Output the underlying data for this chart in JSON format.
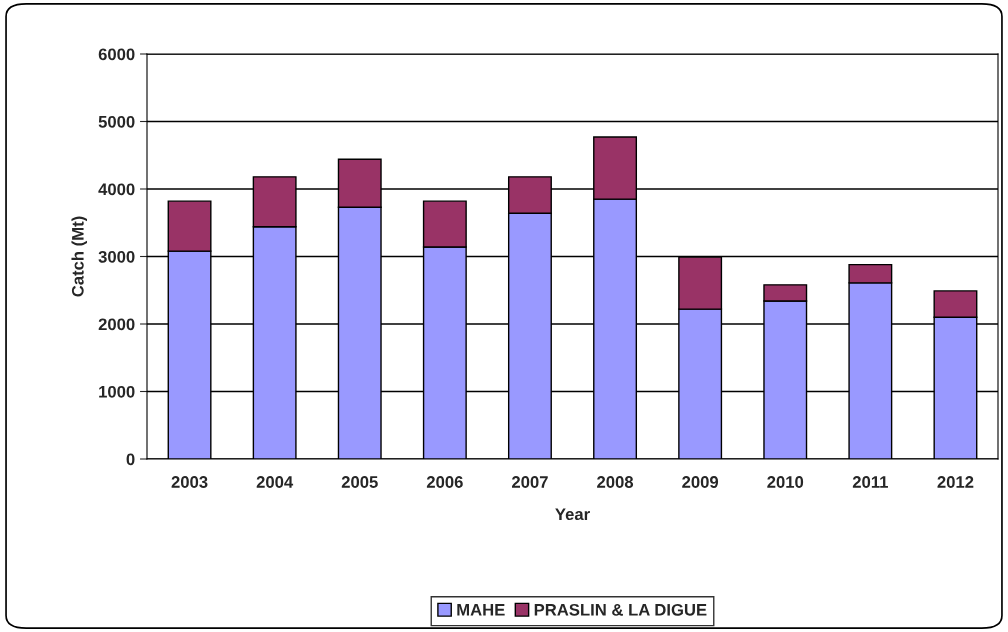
{
  "chart_data": {
    "type": "bar",
    "stacked": true,
    "xlabel": "Year",
    "ylabel": "Catch (Mt)",
    "categories": [
      "2003",
      "2004",
      "2005",
      "2006",
      "2007",
      "2008",
      "2009",
      "2010",
      "2011",
      "2012"
    ],
    "series": [
      {
        "name": "MAHE",
        "color": "#9999ff",
        "values": [
          3080,
          3440,
          3730,
          3140,
          3640,
          3850,
          2220,
          2340,
          2610,
          2100
        ]
      },
      {
        "name": "PRASLIN & LA DIGUE",
        "color": "#993366",
        "values": [
          740,
          740,
          710,
          680,
          540,
          920,
          770,
          240,
          270,
          390
        ]
      }
    ],
    "ylim": [
      0,
      6000
    ],
    "yticks": [
      0,
      1000,
      2000,
      3000,
      4000,
      5000,
      6000
    ],
    "grid": "y",
    "legend": "bottom"
  }
}
